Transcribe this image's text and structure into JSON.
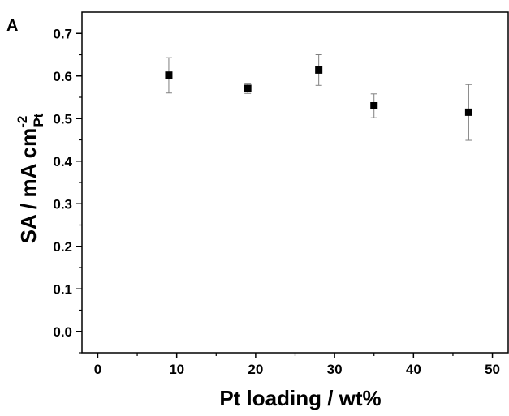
{
  "chart_data": {
    "type": "scatter",
    "panel_label": "A",
    "xlabel": "Pt loading / wt%",
    "ylabel": {
      "main": "SA / mA cm",
      "superscript": "-2",
      "subscript": "Pt"
    },
    "xlim": [
      -2,
      52
    ],
    "ylim": [
      -0.05,
      0.75
    ],
    "xticks": [
      0,
      10,
      20,
      30,
      40,
      50
    ],
    "xtick_labels": [
      "0",
      "10",
      "20",
      "30",
      "40",
      "50"
    ],
    "yticks": [
      0.0,
      0.1,
      0.2,
      0.3,
      0.4,
      0.5,
      0.6,
      0.7
    ],
    "ytick_labels": [
      "0.0",
      "0.1",
      "0.2",
      "0.3",
      "0.4",
      "0.5",
      "0.6",
      "0.7"
    ],
    "grid": false,
    "marker": "square",
    "marker_color": "#000000",
    "errorbar_color": "#808080",
    "series": [
      {
        "x": [
          9,
          19,
          28,
          35,
          47
        ],
        "y": [
          0.602,
          0.571,
          0.614,
          0.53,
          0.515
        ],
        "yerr_upper": [
          0.643,
          0.583,
          0.65,
          0.558,
          0.58
        ],
        "yerr_lower": [
          0.56,
          0.559,
          0.578,
          0.502,
          0.449
        ]
      }
    ]
  }
}
